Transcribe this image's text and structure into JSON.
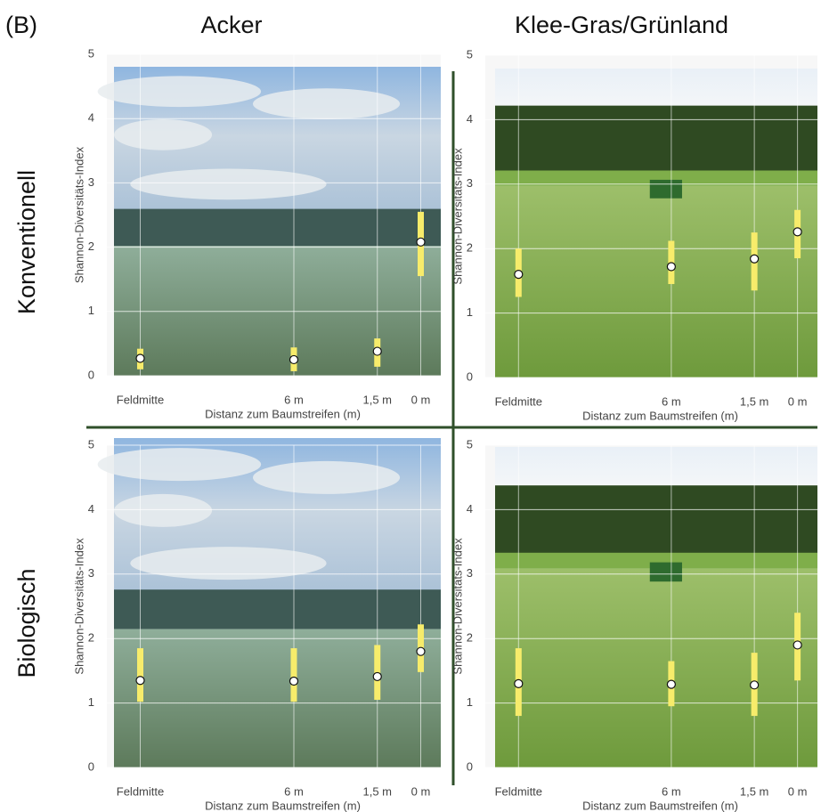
{
  "panel_label": "(B)",
  "column_titles": [
    "Acker",
    "Klee-Gras/Grünland"
  ],
  "row_titles": [
    "Konventionell",
    "Biologisch"
  ],
  "chart_data": [
    {
      "type": "pointrange",
      "xlabel": "Distanz zum Baumstreifen (m)",
      "ylabel": "Shannon-Diversitäts-Index",
      "categories": [
        "Feldmitte",
        "6 m",
        "1,5 m",
        "0 m"
      ],
      "ylim": [
        0,
        5
      ],
      "yticks": [
        0,
        1,
        2,
        3,
        4,
        5
      ],
      "grid": true,
      "point_color": "#ffffff",
      "range_color": "#f7ec6b",
      "values": [
        0.27,
        0.25,
        0.38,
        2.08
      ],
      "lower": [
        0.1,
        0.07,
        0.14,
        1.55
      ],
      "upper": [
        0.42,
        0.44,
        0.58,
        2.55
      ]
    },
    {
      "type": "pointrange",
      "xlabel": "Distanz zum Baumstreifen (m)",
      "ylabel": "Shannon-Diversitäts-Index",
      "categories": [
        "Feldmitte",
        "6 m",
        "1,5 m",
        "0 m"
      ],
      "ylim": [
        0,
        5
      ],
      "yticks": [
        0,
        1,
        2,
        3,
        4,
        5
      ],
      "grid": true,
      "point_color": "#ffffff",
      "range_color": "#f7ec6b",
      "values": [
        1.6,
        1.72,
        1.84,
        2.26
      ],
      "lower": [
        1.25,
        1.45,
        1.35,
        1.85
      ],
      "upper": [
        2.0,
        2.12,
        2.25,
        2.6
      ]
    },
    {
      "type": "pointrange",
      "xlabel": "Distanz zum Baumstreifen (m)",
      "ylabel": "Shannon-Diversitäts-Index",
      "categories": [
        "Feldmitte",
        "6 m",
        "1,5 m",
        "0 m"
      ],
      "ylim": [
        0,
        5
      ],
      "yticks": [
        0,
        1,
        2,
        3,
        4,
        5
      ],
      "grid": true,
      "point_color": "#ffffff",
      "range_color": "#f7ec6b",
      "values": [
        1.35,
        1.34,
        1.41,
        1.8
      ],
      "lower": [
        1.02,
        1.02,
        1.05,
        1.48
      ],
      "upper": [
        1.85,
        1.85,
        1.9,
        2.22
      ]
    },
    {
      "type": "pointrange",
      "xlabel": "Distanz zum Baumstreifen (m)",
      "ylabel": "Shannon-Diversitäts-Index",
      "categories": [
        "Feldmitte",
        "6 m",
        "1,5 m",
        "0 m"
      ],
      "ylim": [
        0,
        5
      ],
      "yticks": [
        0,
        1,
        2,
        3,
        4,
        5
      ],
      "grid": true,
      "point_color": "#ffffff",
      "range_color": "#f7ec6b",
      "values": [
        1.3,
        1.29,
        1.28,
        1.9
      ],
      "lower": [
        0.8,
        0.95,
        0.8,
        1.35
      ],
      "upper": [
        1.85,
        1.65,
        1.78,
        2.4
      ]
    }
  ]
}
